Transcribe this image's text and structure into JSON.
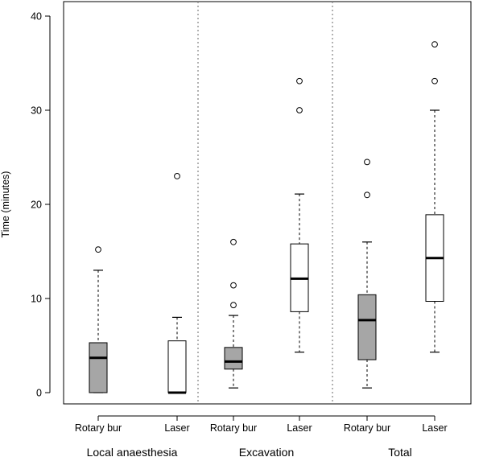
{
  "chart_data": {
    "type": "boxplot",
    "ylabel": "Time (minutes)",
    "ylim": [
      0,
      40
    ],
    "yticks": [
      0,
      10,
      20,
      30,
      40
    ],
    "grid": false,
    "groups": [
      "Local anaesthesia",
      "Excavation",
      "Total"
    ],
    "boxes": [
      {
        "group": "Local anaesthesia",
        "category": "Rotary bur",
        "fill": "#a6a6a6",
        "min": 0,
        "q1": 0,
        "median": 3.7,
        "q3": 5.3,
        "max": 13.0,
        "outliers": [
          15.2
        ]
      },
      {
        "group": "Local anaesthesia",
        "category": "Laser",
        "fill": "#ffffff",
        "min": 0,
        "q1": 0,
        "median": 0,
        "q3": 5.5,
        "max": 8.0,
        "outliers": [
          23.0
        ]
      },
      {
        "group": "Excavation",
        "category": "Rotary bur",
        "fill": "#a6a6a6",
        "min": 0.5,
        "q1": 2.5,
        "median": 3.3,
        "q3": 4.8,
        "max": 8.2,
        "outliers": [
          9.3,
          11.4,
          16.0
        ]
      },
      {
        "group": "Excavation",
        "category": "Laser",
        "fill": "#ffffff",
        "min": 4.3,
        "q1": 8.6,
        "median": 12.1,
        "q3": 15.8,
        "max": 21.1,
        "outliers": [
          30.0,
          33.1
        ]
      },
      {
        "group": "Total",
        "category": "Rotary bur",
        "fill": "#a6a6a6",
        "min": 0.5,
        "q1": 3.5,
        "median": 7.7,
        "q3": 10.4,
        "max": 16.0,
        "outliers": [
          21.0,
          24.5
        ]
      },
      {
        "group": "Total",
        "category": "Laser",
        "fill": "#ffffff",
        "min": 4.3,
        "q1": 9.7,
        "median": 14.3,
        "q3": 18.9,
        "max": 30.0,
        "outliers": [
          33.1,
          37.0
        ]
      }
    ]
  }
}
